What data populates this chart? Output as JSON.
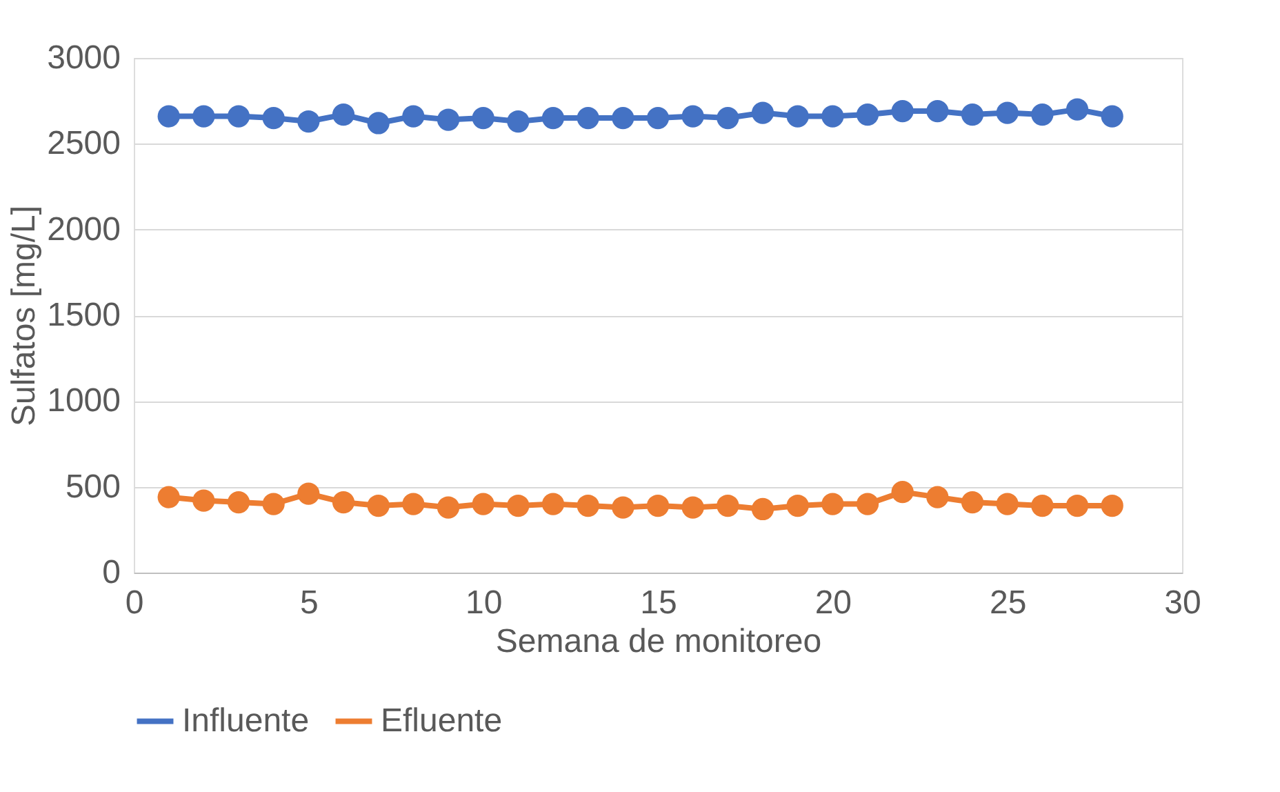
{
  "chart_data": {
    "type": "line",
    "xlabel": "Semana de monitoreo",
    "ylabel": "Sulfatos [mg/L]",
    "x": [
      1,
      2,
      3,
      4,
      5,
      6,
      7,
      8,
      9,
      10,
      11,
      12,
      13,
      14,
      15,
      16,
      17,
      18,
      19,
      20,
      21,
      22,
      23,
      24,
      25,
      26,
      27,
      28
    ],
    "series": [
      {
        "name": "Influente",
        "color": "#4472c4",
        "values": [
          2660,
          2660,
          2660,
          2650,
          2630,
          2670,
          2620,
          2660,
          2640,
          2650,
          2630,
          2650,
          2650,
          2650,
          2650,
          2660,
          2650,
          2680,
          2660,
          2660,
          2670,
          2690,
          2690,
          2670,
          2680,
          2670,
          2700,
          2660
        ]
      },
      {
        "name": "Efluente",
        "color": "#ed7d31",
        "values": [
          440,
          420,
          410,
          400,
          460,
          410,
          390,
          400,
          380,
          400,
          390,
          400,
          390,
          380,
          390,
          380,
          390,
          370,
          390,
          400,
          400,
          470,
          440,
          410,
          400,
          390,
          390,
          390
        ]
      }
    ],
    "xlim": [
      0,
      30
    ],
    "xticks": [
      0,
      5,
      10,
      15,
      20,
      25,
      30
    ],
    "ylim": [
      0,
      3000
    ],
    "yticks": [
      0,
      500,
      1000,
      1500,
      2000,
      2500,
      3000
    ],
    "grid": "y",
    "legend": "bottom",
    "marker": "circle",
    "line_style": "solid"
  }
}
